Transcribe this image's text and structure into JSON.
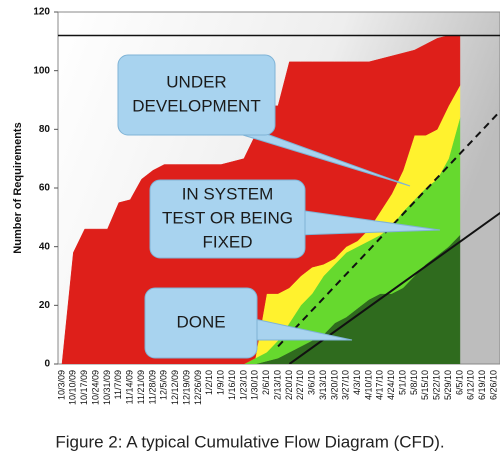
{
  "chart_data": {
    "type": "area",
    "stacked": true,
    "caption": "Figure 2: A typical Cumulative Flow Diagram (CFD).",
    "ylabel": "Number of Requirements",
    "ylim": [
      0,
      120
    ],
    "yticks": [
      0,
      20,
      40,
      60,
      80,
      100,
      120
    ],
    "grid": false,
    "categories": [
      "10/3/09",
      "10/10/09",
      "10/17/09",
      "10/24/09",
      "10/31/09",
      "11/7/09",
      "11/14/09",
      "11/21/09",
      "11/28/09",
      "12/5/09",
      "12/12/09",
      "12/19/09",
      "12/26/09",
      "1/2/10",
      "1/9/10",
      "1/16/10",
      "1/23/10",
      "1/30/10",
      "2/6/10",
      "2/13/10",
      "2/20/10",
      "2/27/10",
      "3/6/10",
      "3/13/10",
      "3/20/10",
      "3/27/10",
      "4/3/10",
      "4/10/10",
      "4/17/10",
      "4/24/10",
      "5/1/10",
      "5/8/10",
      "5/15/10",
      "5/22/10",
      "5/29/10",
      "6/5/10",
      "6/12/10",
      "6/19/10",
      "6/26/10"
    ],
    "series": [
      {
        "color": "#2f6b1e",
        "values": [
          0,
          0,
          0,
          0,
          0,
          0,
          0,
          0,
          0,
          0,
          0,
          0,
          0,
          0,
          0,
          0,
          0,
          0,
          1,
          2,
          4,
          6,
          8,
          10,
          14,
          16,
          19,
          22,
          24,
          24,
          26,
          30,
          34,
          37,
          40,
          44,
          null,
          null,
          null
        ]
      },
      {
        "color": "#66d92e",
        "values": [
          0,
          0,
          0,
          0,
          0,
          0,
          0,
          0,
          0,
          0,
          0,
          0,
          0,
          0,
          0,
          0,
          0,
          2,
          3,
          6,
          10,
          14,
          16,
          20,
          20,
          22,
          21,
          20,
          20,
          23,
          26,
          26,
          26,
          26,
          30,
          40,
          null,
          null,
          null
        ]
      },
      {
        "color": "#fff22e",
        "values": [
          0,
          0,
          0,
          0,
          0,
          0,
          0,
          0,
          0,
          0,
          0,
          0,
          0,
          0,
          0,
          0,
          0,
          0,
          20,
          16,
          12,
          10,
          9,
          4,
          2,
          2,
          2,
          4,
          8,
          11,
          14,
          22,
          18,
          17,
          18,
          11,
          null,
          null,
          null
        ]
      },
      {
        "color": "#de1f1a",
        "values": [
          0,
          38,
          46,
          46,
          46,
          55,
          56,
          63,
          66,
          68,
          68,
          68,
          68,
          68,
          68,
          69,
          70,
          76,
          64,
          64,
          77,
          73,
          70,
          69,
          67,
          63,
          61,
          57,
          52,
          47,
          40,
          29,
          31,
          31,
          24,
          17,
          null,
          null,
          null
        ]
      }
    ],
    "reference_lines": [
      {
        "y": 112,
        "dash": false
      },
      {
        "from": {
          "x": "2/13/10",
          "y": 6
        },
        "to": {
          "x": "6/26/10",
          "y": 84
        },
        "dash": true
      },
      {
        "from": {
          "x": "2/20/10",
          "y": 0
        },
        "to": {
          "x": "6/26/10",
          "y": 50
        },
        "dash": false
      }
    ],
    "annotations": [
      {
        "lines": [
          "UNDER",
          "DEVELOPMENT"
        ]
      },
      {
        "lines": [
          "IN SYSTEM",
          "TEST OR BEING",
          "FIXED"
        ]
      },
      {
        "lines": [
          "DONE"
        ]
      }
    ]
  }
}
